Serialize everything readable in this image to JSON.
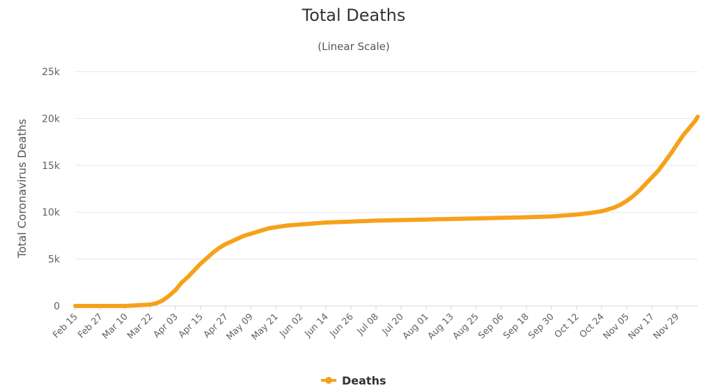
{
  "chart_data": {
    "type": "line",
    "title": "Total Deaths",
    "subtitle": "(Linear Scale)",
    "ylabel": "Total Coronavirus Deaths",
    "xlabel": "",
    "ylim": [
      0,
      25000
    ],
    "y_ticks": [
      {
        "value": 0,
        "label": "0"
      },
      {
        "value": 5000,
        "label": "5k"
      },
      {
        "value": 10000,
        "label": "10k"
      },
      {
        "value": 15000,
        "label": "15k"
      },
      {
        "value": 20000,
        "label": "20k"
      },
      {
        "value": 25000,
        "label": "25k"
      }
    ],
    "x_range": [
      "Feb 15",
      "Dec 09"
    ],
    "x_tick_labels": [
      "Feb 15",
      "Feb 27",
      "Mar 10",
      "Mar 22",
      "Apr 03",
      "Apr 15",
      "Apr 27",
      "May 09",
      "May 21",
      "Jun 02",
      "Jun 14",
      "Jun 26",
      "Jul 08",
      "Jul 20",
      "Aug 01",
      "Aug 13",
      "Aug 25",
      "Sep 06",
      "Sep 18",
      "Sep 30",
      "Oct 12",
      "Oct 24",
      "Nov 05",
      "Nov 17",
      "Nov 29"
    ],
    "grid": true,
    "legend": "bottom-center",
    "colors": {
      "line": "#f7a11a",
      "grid": "#e6e6e6",
      "axis": "#ccd6eb"
    },
    "series": [
      {
        "name": "Deaths",
        "x": [
          "Feb 15",
          "Mar 10",
          "Mar 22",
          "Mar 25",
          "Mar 28",
          "Mar 31",
          "Apr 03",
          "Apr 06",
          "Apr 09",
          "Apr 12",
          "Apr 15",
          "Apr 18",
          "Apr 21",
          "Apr 24",
          "Apr 27",
          "Apr 30",
          "May 03",
          "May 06",
          "May 09",
          "May 12",
          "May 15",
          "May 18",
          "May 21",
          "May 24",
          "May 27",
          "Jun 02",
          "Jun 08",
          "Jun 14",
          "Jun 20",
          "Jun 26",
          "Jul 02",
          "Jul 08",
          "Jul 14",
          "Jul 20",
          "Jul 26",
          "Aug 01",
          "Aug 07",
          "Aug 13",
          "Aug 19",
          "Aug 25",
          "Aug 31",
          "Sep 06",
          "Sep 12",
          "Sep 18",
          "Sep 24",
          "Sep 30",
          "Oct 06",
          "Oct 12",
          "Oct 18",
          "Oct 24",
          "Oct 30",
          "Nov 02",
          "Nov 05",
          "Nov 08",
          "Nov 11",
          "Nov 14",
          "Nov 17",
          "Nov 20",
          "Nov 23",
          "Nov 26",
          "Nov 29",
          "Dec 02",
          "Dec 05",
          "Dec 08",
          "Dec 09"
        ],
        "values": [
          0,
          0,
          150,
          300,
          600,
          1100,
          1700,
          2500,
          3100,
          3800,
          4500,
          5100,
          5700,
          6200,
          6600,
          6900,
          7200,
          7500,
          7700,
          7900,
          8100,
          8300,
          8400,
          8500,
          8600,
          8700,
          8800,
          8900,
          8950,
          9000,
          9050,
          9100,
          9130,
          9160,
          9190,
          9220,
          9250,
          9280,
          9310,
          9340,
          9370,
          9400,
          9430,
          9460,
          9500,
          9550,
          9650,
          9750,
          9900,
          10100,
          10500,
          10800,
          11200,
          11700,
          12300,
          13000,
          13700,
          14400,
          15300,
          16200,
          17200,
          18200,
          19000,
          19800,
          20200
        ]
      }
    ]
  }
}
